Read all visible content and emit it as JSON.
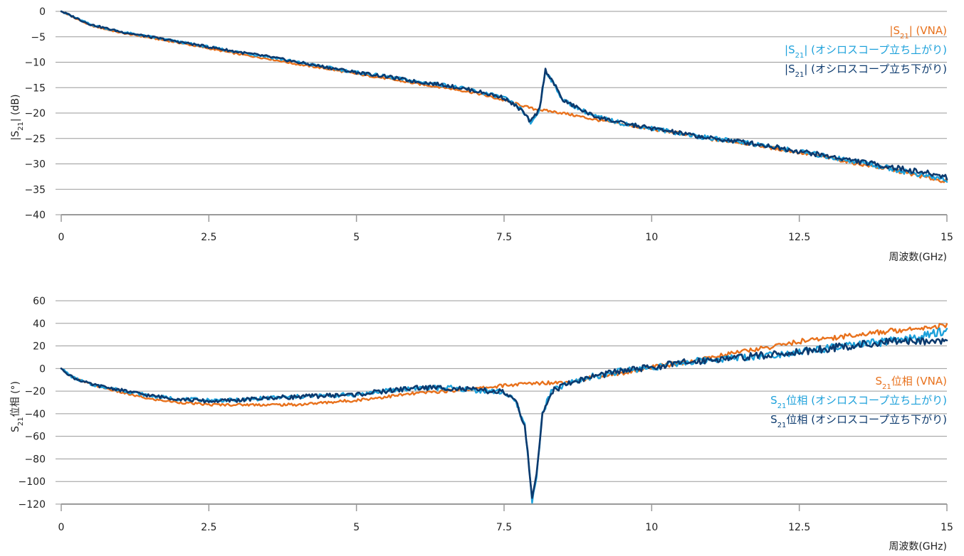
{
  "colors": {
    "vna": "#E8711C",
    "rise": "#1DA1DB",
    "fall": "#0C3A6E",
    "grid": "#9A9A9A",
    "text": "#222222"
  },
  "chart_data": [
    {
      "type": "line",
      "ylabel": {
        "pre": "|S",
        "sub": "21",
        "post": "| (dB)"
      },
      "xlabel": "周波数(GHz)",
      "xlim": [
        0,
        15
      ],
      "ylim": [
        -40,
        0
      ],
      "x_ticks": [
        0,
        2.5,
        5,
        7.5,
        10,
        12.5,
        15
      ],
      "x_tick_labels": [
        "0",
        "2.5",
        "5",
        "7.5",
        "10",
        "12.5",
        "15"
      ],
      "y_ticks": [
        0,
        -5,
        -10,
        -15,
        -20,
        -25,
        -30,
        -35,
        -40
      ],
      "y_tick_labels": [
        "0",
        "−5",
        "−10",
        "−15",
        "−20",
        "−25",
        "−30",
        "−35",
        "−40"
      ],
      "grid": "horizontal",
      "legend_position": "top-right",
      "series": [
        {
          "key": "vna",
          "legend": {
            "pre": "|S",
            "sub": "21",
            "post": "| (VNA)"
          },
          "x": [
            0,
            0.5,
            1,
            1.5,
            2,
            2.5,
            3,
            3.5,
            4,
            4.5,
            5,
            5.5,
            6,
            6.5,
            7,
            7.5,
            8,
            8.5,
            9,
            9.5,
            10,
            10.5,
            11,
            11.5,
            12,
            12.5,
            13,
            13.5,
            14,
            14.5,
            15
          ],
          "y": [
            0,
            -2.8,
            -4.2,
            -5.2,
            -6.2,
            -7.3,
            -8.4,
            -9.3,
            -10.4,
            -11.3,
            -12.3,
            -13.2,
            -14.2,
            -15.0,
            -16.0,
            -17.5,
            -19.2,
            -20.0,
            -21.2,
            -22.2,
            -23.2,
            -24.0,
            -25.2,
            -25.8,
            -26.8,
            -27.8,
            -28.8,
            -30.0,
            -31.0,
            -32.3,
            -33.5
          ]
        },
        {
          "key": "rise",
          "legend": {
            "pre": "|S",
            "sub": "21",
            "post": "| (オシロスコープ立ち上がり)"
          },
          "x": [
            0,
            0.5,
            1,
            1.5,
            2,
            2.5,
            3,
            3.5,
            4,
            4.5,
            5,
            5.5,
            6,
            6.5,
            7,
            7.5,
            7.8,
            7.95,
            8.1,
            8.2,
            8.3,
            8.5,
            9,
            9.5,
            10,
            10.5,
            11,
            11.5,
            12,
            12.5,
            13,
            13.5,
            14,
            14.5,
            15
          ],
          "y": [
            0,
            -2.6,
            -4.0,
            -5.0,
            -6.0,
            -7.0,
            -8.0,
            -8.9,
            -10.0,
            -11.0,
            -12.0,
            -12.8,
            -13.8,
            -14.5,
            -15.6,
            -17.0,
            -19.3,
            -22.0,
            -19.5,
            -11.5,
            -13.5,
            -17.5,
            -20.5,
            -22.0,
            -23.0,
            -24.0,
            -25.0,
            -25.6,
            -26.6,
            -27.6,
            -28.6,
            -29.6,
            -30.8,
            -32.0,
            -33.2
          ]
        },
        {
          "key": "fall",
          "legend": {
            "pre": "|S",
            "sub": "21",
            "post": "| (オシロスコープ立ち下がり)"
          },
          "x": [
            0,
            0.5,
            1,
            1.5,
            2,
            2.5,
            3,
            3.5,
            4,
            4.5,
            5,
            5.5,
            6,
            6.5,
            7,
            7.5,
            7.8,
            7.95,
            8.1,
            8.2,
            8.3,
            8.5,
            9,
            9.5,
            10,
            10.5,
            11,
            11.5,
            12,
            12.5,
            13,
            13.5,
            14,
            14.5,
            15
          ],
          "y": [
            0,
            -2.6,
            -4.0,
            -5.0,
            -6.0,
            -7.0,
            -8.0,
            -8.9,
            -10.0,
            -11.0,
            -12.0,
            -12.8,
            -13.8,
            -14.5,
            -15.6,
            -17.0,
            -19.5,
            -21.8,
            -19.2,
            -11.5,
            -13.3,
            -17.5,
            -20.5,
            -22.0,
            -23.0,
            -24.0,
            -25.0,
            -25.6,
            -26.5,
            -27.5,
            -28.5,
            -29.5,
            -30.5,
            -31.5,
            -32.5
          ]
        }
      ]
    },
    {
      "type": "line",
      "ylabel": {
        "pre": "S",
        "sub": "21",
        "post": "位相 (°)"
      },
      "xlabel": "周波数(GHz)",
      "xlim": [
        0,
        15
      ],
      "ylim": [
        -120,
        60
      ],
      "x_ticks": [
        0,
        2.5,
        5,
        7.5,
        10,
        12.5,
        15
      ],
      "x_tick_labels": [
        "0",
        "2.5",
        "5",
        "7.5",
        "10",
        "12.5",
        "15"
      ],
      "y_ticks": [
        60,
        40,
        20,
        0,
        -20,
        -40,
        -60,
        -80,
        -100,
        -120
      ],
      "y_tick_labels": [
        "60",
        "40",
        "20",
        "0",
        "−20",
        "−40",
        "−60",
        "−80",
        "−100",
        "−120"
      ],
      "grid": "horizontal",
      "legend_position": "right",
      "series": [
        {
          "key": "vna",
          "legend": {
            "pre": "S",
            "sub": "21",
            "post": "位相 (VNA)"
          },
          "x": [
            0,
            0.2,
            0.5,
            1,
            1.5,
            2,
            2.5,
            3,
            3.5,
            4,
            4.5,
            5,
            5.5,
            6,
            6.5,
            7,
            7.5,
            8,
            8.5,
            9,
            9.5,
            10,
            10.5,
            11,
            11.5,
            12,
            12.5,
            13,
            13.5,
            14,
            14.5,
            15
          ],
          "y": [
            0,
            -8,
            -14,
            -21,
            -27,
            -30,
            -32,
            -32,
            -32,
            -32,
            -30,
            -28,
            -25,
            -22,
            -20,
            -18,
            -15,
            -13,
            -12,
            -8,
            -4,
            1,
            5,
            10,
            15,
            19,
            24,
            27,
            30,
            33,
            36,
            38
          ]
        },
        {
          "key": "rise",
          "legend": {
            "pre": "S",
            "sub": "21",
            "post": "位相 (オシロスコープ立ち上がり)"
          },
          "x": [
            0,
            0.2,
            0.5,
            1,
            1.5,
            2,
            2.5,
            3,
            3.5,
            4,
            4.5,
            5,
            5.5,
            6,
            6.5,
            7,
            7.5,
            7.7,
            7.85,
            7.93,
            7.97,
            8.05,
            8.15,
            8.3,
            8.6,
            9,
            9.5,
            10,
            10.5,
            11,
            11.5,
            12,
            12.5,
            13,
            13.5,
            14,
            14.5,
            15
          ],
          "y": [
            0,
            -8,
            -14,
            -19,
            -24,
            -27,
            -28,
            -28,
            -26,
            -25,
            -24,
            -23,
            -20,
            -17,
            -17,
            -19,
            -21,
            -30,
            -50,
            -90,
            -118,
            -95,
            -40,
            -20,
            -13,
            -7,
            -2,
            1,
            5,
            8,
            10,
            12,
            15,
            18,
            21,
            24,
            27,
            34
          ]
        },
        {
          "key": "fall",
          "legend": {
            "pre": "S",
            "sub": "21",
            "post": "位相 (オシロスコープ立ち下がり)"
          },
          "x": [
            0,
            0.2,
            0.5,
            1,
            1.5,
            2,
            2.5,
            3,
            3.5,
            4,
            4.5,
            5,
            5.5,
            6,
            6.5,
            7,
            7.5,
            7.7,
            7.85,
            7.93,
            7.97,
            8.05,
            8.15,
            8.3,
            8.6,
            9,
            9.5,
            10,
            10.5,
            11,
            11.5,
            12,
            12.5,
            13,
            13.5,
            14,
            14.5,
            15
          ],
          "y": [
            0,
            -8,
            -14,
            -19,
            -24,
            -27,
            -29,
            -28,
            -26,
            -25,
            -24,
            -23,
            -20,
            -17,
            -17,
            -19,
            -21,
            -30,
            -50,
            -90,
            -118,
            -95,
            -40,
            -20,
            -13,
            -7,
            -2,
            1,
            5,
            8,
            10,
            12,
            15,
            18,
            21,
            23,
            25,
            25
          ]
        }
      ]
    }
  ]
}
